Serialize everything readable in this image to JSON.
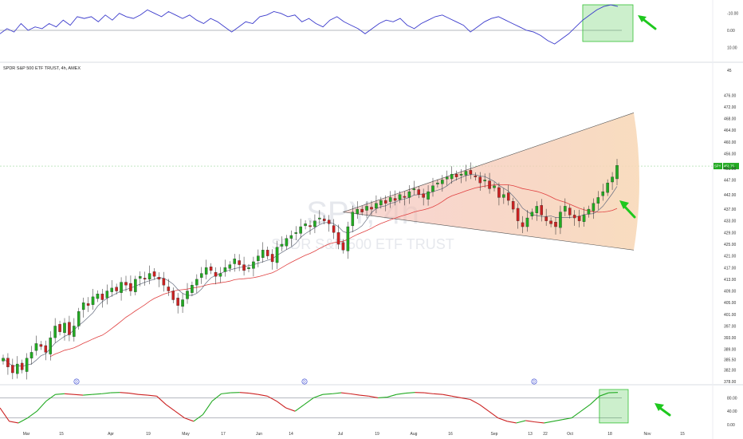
{
  "title": "SPDR S&P 500 ETF TRUST, 4h, AMEX",
  "watermark": {
    "symbol": "SPY, 4h",
    "name": "SPDR S&P 500 ETF TRUST"
  },
  "colors": {
    "up": "#22aa22",
    "down": "#cc2222",
    "ma_fast": "#666e80",
    "ma_slow": "#e04040",
    "osc_line": "#3b3bcc",
    "fan_start": "#f4cdb8",
    "fan_end": "#f8d9b8",
    "highlight": "#34c034",
    "arrow": "#1ec81e",
    "marker": "#2f3fd0"
  },
  "chart_data": [
    {
      "type": "line",
      "panel": "top-oscillator",
      "y_ticks": [
        "-10.00",
        "0.00",
        "10.00"
      ],
      "ylim_inverted": [
        -15,
        15
      ],
      "baseline": 0,
      "series": [
        {
          "values": [
            2,
            -1,
            1,
            -4,
            0,
            -2,
            -1,
            -4,
            -2,
            -6,
            -3,
            -8,
            -7,
            -8,
            -5,
            -9,
            -6,
            -10,
            -8,
            -7,
            -9,
            -12,
            -10,
            -8,
            -11,
            -9,
            -7,
            -9,
            -6,
            -4,
            -7,
            -5,
            -2,
            1,
            -2,
            -5,
            -4,
            -8,
            -9,
            -11,
            -10,
            -8,
            -9,
            -5,
            -7,
            -4,
            -2,
            -6,
            -8,
            -5,
            -3,
            -1,
            2,
            -1,
            -4,
            -6,
            -5,
            -7,
            -3,
            -1,
            -4,
            -6,
            -8,
            -9,
            -7,
            -5,
            -3,
            1,
            -2,
            -5,
            -7,
            -8,
            -6,
            -4,
            -2,
            0,
            1,
            3,
            6,
            8,
            5,
            2,
            -2,
            -6,
            -9,
            -12,
            -14,
            -15,
            -14
          ]
        }
      ],
      "highlight_region": "last few bars (top-right)"
    },
    {
      "type": "candlestick",
      "panel": "price",
      "y_ticks": [
        "476.00",
        "472.00",
        "468.00",
        "464.00",
        "460.00",
        "456.00",
        "451.00",
        "447.00",
        "442.00",
        "437.00",
        "433.00",
        "429.00",
        "425.00",
        "421.00",
        "417.00",
        "413.00",
        "409.00",
        "405.00",
        "401.00",
        "397.00",
        "393.00",
        "389.00",
        "385.50",
        "382.00",
        "378.00"
      ],
      "ylim": [
        378,
        478
      ],
      "x_ticks": [
        "Mar",
        "15",
        "Apr",
        "19",
        "May",
        "17",
        "Jun",
        "14",
        "Jul",
        "19",
        "Aug",
        "16",
        "Sep",
        "13",
        "22",
        "Oct",
        "18",
        "Nov",
        "15"
      ],
      "close_values": [
        386,
        383,
        381,
        384,
        382,
        386,
        388,
        391,
        390,
        388,
        393,
        397,
        395,
        398,
        394,
        397,
        402,
        405,
        404,
        407,
        408,
        406,
        409,
        410,
        409,
        412,
        411,
        409,
        413,
        414,
        413,
        415,
        414,
        413,
        411,
        409,
        406,
        404,
        406,
        409,
        411,
        413,
        415,
        417,
        416,
        414,
        415,
        417,
        418,
        420,
        418,
        416,
        417,
        419,
        421,
        423,
        421,
        419,
        424,
        425,
        427,
        428,
        429,
        431,
        432,
        431,
        433,
        434,
        433,
        432,
        429,
        425,
        423,
        431,
        436,
        437,
        436,
        438,
        437,
        439,
        440,
        439,
        441,
        440,
        442,
        441,
        443,
        444,
        442,
        441,
        443,
        445,
        446,
        447,
        448,
        449,
        448,
        449,
        450,
        449,
        448,
        446,
        447,
        444,
        445,
        441,
        442,
        440,
        437,
        433,
        431,
        434,
        436,
        438,
        435,
        433,
        432,
        431,
        436,
        438,
        435,
        434,
        433,
        435,
        437,
        439,
        441,
        443,
        446,
        448,
        452
      ],
      "ma_fast": "moving average (grey)",
      "ma_slow": "moving average (red)",
      "price_tag": {
        "symbol": "SPY",
        "value": "451.75"
      },
      "pattern": "expanding wedge (broadening formation), shaded"
    },
    {
      "type": "line",
      "panel": "bottom-oscillator",
      "y_ticks": [
        "80.00",
        "40.00",
        "0.00"
      ],
      "ylim": [
        0,
        100
      ],
      "reference_lines": [
        80,
        20
      ],
      "series": [
        {
          "values": [
            50,
            10,
            5,
            20,
            40,
            70,
            90,
            92,
            90,
            88,
            90,
            92,
            95,
            96,
            94,
            90,
            88,
            85,
            60,
            40,
            20,
            10,
            30,
            70,
            92,
            95,
            96,
            94,
            90,
            85,
            70,
            50,
            40,
            60,
            80,
            90,
            92,
            95,
            92,
            88,
            85,
            80,
            82,
            90,
            94,
            96,
            95,
            92,
            90,
            85,
            80,
            75,
            60,
            40,
            20,
            10,
            5,
            12,
            8,
            5,
            10,
            15,
            20,
            40,
            60,
            85,
            95,
            96
          ]
        }
      ],
      "markers": [
        "D",
        "D",
        "D"
      ],
      "highlight_region": "last few bars (bottom-right)"
    }
  ]
}
